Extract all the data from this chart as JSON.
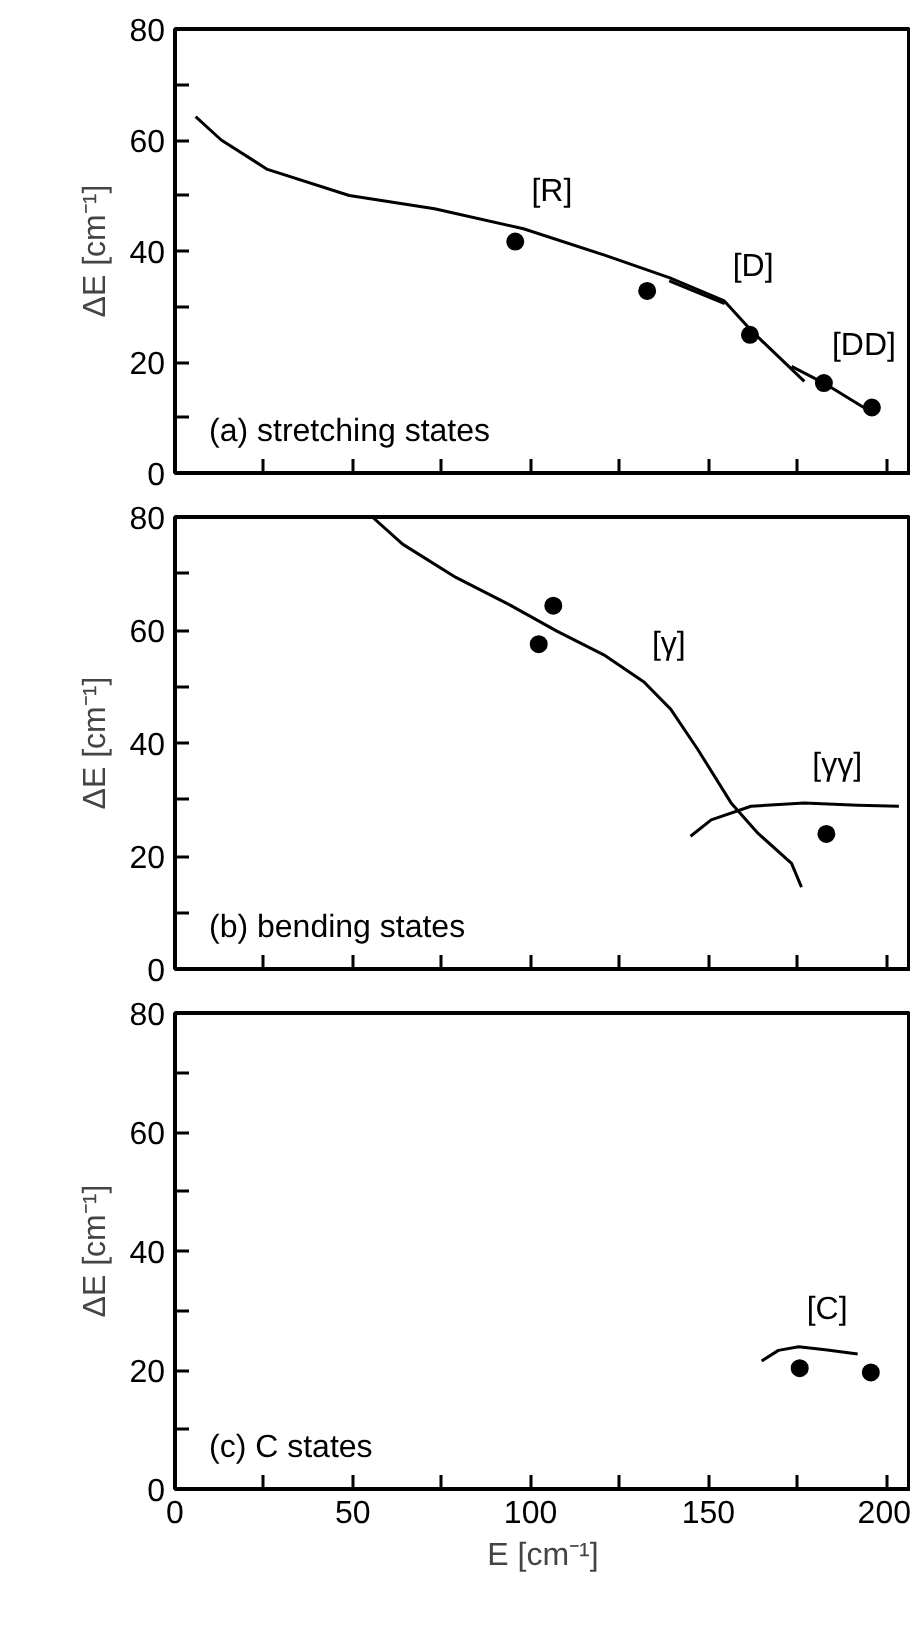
{
  "chart_data": [
    {
      "type": "line",
      "ylabel": "ΔE [cm⁻¹]",
      "xlim": [
        0,
        207
      ],
      "ylim": [
        0,
        80
      ],
      "xticks": [
        0,
        {
          "value": 25,
          "label": null
        },
        50,
        {
          "value": 75,
          "label": null
        },
        100,
        {
          "value": 125,
          "label": null
        },
        150,
        {
          "value": 175,
          "label": null
        },
        200
      ],
      "yticks": [
        0,
        {
          "value": 10,
          "label": null
        },
        20,
        {
          "value": 30,
          "label": null
        },
        40,
        {
          "value": 50,
          "label": null
        },
        60,
        {
          "value": 70,
          "label": null
        },
        80
      ],
      "tick_labels": "y",
      "grid": false,
      "line_style": "solid",
      "series": [
        {
          "name": "[R]",
          "color": "#000000",
          "x": [
            5.8,
            13,
            26,
            49,
            73,
            98,
            120.6,
            139,
            154.5,
            162,
            177
          ],
          "values": [
            64.2,
            60,
            54.7,
            50,
            47.6,
            44,
            39.3,
            35.2,
            31,
            25.7,
            16.5
          ]
        },
        {
          "name": "[D]",
          "color": "#000000",
          "x": [
            139,
            154.6
          ],
          "values": [
            34.6,
            30.5
          ]
        },
        {
          "name": "[DD]",
          "color": "#000000",
          "x": [
            173.4,
            182.5,
            196
          ],
          "values": [
            19.2,
            16.2,
            10.9
          ]
        },
        {
          "type": "scatter",
          "marker": "circle",
          "color": "#000000",
          "x": [
            95.7,
            132.8,
            161.7,
            182.5,
            196
          ],
          "values": [
            41.7,
            32.8,
            24.9,
            16.2,
            11.8
          ]
        }
      ],
      "annotations": [
        "(a) stretching states"
      ]
    },
    {
      "type": "line",
      "ylabel": "ΔE [cm⁻¹]",
      "xlim": [
        0,
        207
      ],
      "ylim": [
        0,
        80
      ],
      "xticks": [
        0,
        {
          "value": 25,
          "label": null
        },
        50,
        {
          "value": 75,
          "label": null
        },
        100,
        {
          "value": 125,
          "label": null
        },
        150,
        {
          "value": 175,
          "label": null
        },
        200
      ],
      "yticks": [
        0,
        {
          "value": 10,
          "label": null
        },
        20,
        {
          "value": 30,
          "label": null
        },
        40,
        {
          "value": 50,
          "label": null
        },
        60,
        {
          "value": 70,
          "label": null
        },
        80
      ],
      "tick_labels": "y",
      "grid": false,
      "line_style": "solid",
      "series": [
        {
          "name": "[γ]",
          "color": "#000000",
          "x": [
            55.5,
            64,
            79,
            94,
            107.4,
            120.6,
            131.9,
            139.4,
            147,
            156.4,
            164,
            173.4,
            176.2
          ],
          "values": [
            80,
            75.2,
            69.3,
            64.5,
            59.8,
            55.6,
            50.8,
            46,
            38.9,
            29.4,
            24,
            18.7,
            14.5
          ]
        },
        {
          "name": "[γγ]",
          "color": "#000000",
          "x": [
            145,
            150.8,
            162,
            177,
            192,
            203.6
          ],
          "values": [
            23.5,
            26.4,
            28.8,
            29.4,
            29,
            28.8
          ]
        },
        {
          "type": "scatter",
          "marker": "circle",
          "color": "#000000",
          "x": [
            106.4,
            102.3,
            183.2
          ],
          "values": [
            64.3,
            57.5,
            23.9
          ]
        }
      ],
      "annotations": [
        "(b) bending states"
      ]
    },
    {
      "type": "line",
      "xlabel": "E [cm⁻¹]",
      "ylabel": "ΔE [cm⁻¹]",
      "xlim": [
        0,
        207
      ],
      "ylim": [
        0,
        80
      ],
      "xticks": [
        0,
        {
          "value": 25,
          "label": null
        },
        50,
        {
          "value": 75,
          "label": null
        },
        100,
        {
          "value": 125,
          "label": null
        },
        150,
        {
          "value": 175,
          "label": null
        },
        200
      ],
      "yticks": [
        0,
        {
          "value": 10,
          "label": null
        },
        20,
        {
          "value": 30,
          "label": null
        },
        40,
        {
          "value": 50,
          "label": null
        },
        60,
        {
          "value": 70,
          "label": null
        },
        80
      ],
      "grid": false,
      "line_style": "solid",
      "series": [
        {
          "name": "[C]",
          "color": "#000000",
          "x": [
            165,
            169.7,
            175.4,
            182.9,
            192
          ],
          "values": [
            21.5,
            23.3,
            23.9,
            23.4,
            22.7
          ]
        },
        {
          "type": "scatter",
          "marker": "circle",
          "color": "#000000",
          "x": [
            175.7,
            195.7
          ],
          "values": [
            20.3,
            19.6
          ]
        }
      ],
      "annotations": [
        "(c) C states"
      ]
    }
  ]
}
